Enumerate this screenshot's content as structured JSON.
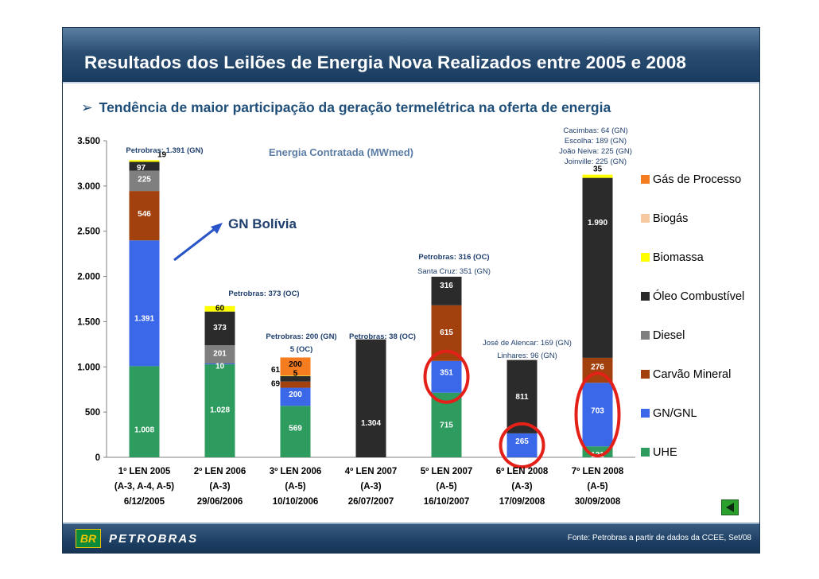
{
  "slide": {
    "title": "Resultados dos Leilões de Energia Nova Realizados entre 2005 e 2008",
    "subtitle": "Tendência de maior participação da geração termelétrica na oferta de energia",
    "footer_source": "Fonte: Petrobras a partir de dados da CCEE, Set/08",
    "logo_text": "PETROBRAS",
    "logo_mark": "BR",
    "back_icon": "triangle-left-icon"
  },
  "colors": {
    "UHE": "#2e9b5f",
    "GN/GNL": "#3b68e8",
    "Carvão Mineral": "#a3410e",
    "Diesel": "#7f7f7f",
    "Óleo Combustível": "#2b2b2b",
    "Biomassa": "#ffff00",
    "Biogás": "#f7c9a0",
    "Gás de Processo": "#f57c1f",
    "highlight_ring": "#e32119",
    "annotation_text": "#1f3f6e"
  },
  "chart_data": {
    "type": "stacked-bar",
    "title": "Energia Contratada (MWmed)",
    "ylim": [
      0,
      3500
    ],
    "yticks": [
      0,
      500,
      1000,
      1500,
      2000,
      2500,
      3000,
      3500
    ],
    "ytick_labels": [
      "0",
      "500",
      "1.000",
      "1.500",
      "2.000",
      "2.500",
      "3.000",
      "3.500"
    ],
    "categories": [
      {
        "name": "1º LEN 2005",
        "type": "(A-3, A-4, A-5)",
        "date": "6/12/2005"
      },
      {
        "name": "2º LEN 2006",
        "type": "(A-3)",
        "date": "29/06/2006"
      },
      {
        "name": "3º LEN 2006",
        "type": "(A-5)",
        "date": "10/10/2006"
      },
      {
        "name": "4º LEN 2007",
        "type": "(A-3)",
        "date": "26/07/2007"
      },
      {
        "name": "5º LEN 2007",
        "type": "(A-5)",
        "date": "16/10/2007"
      },
      {
        "name": "6º LEN 2008",
        "type": "(A-3)",
        "date": "17/09/2008"
      },
      {
        "name": "7º LEN 2008",
        "type": "(A-5)",
        "date": "30/09/2008"
      }
    ],
    "legend": [
      "Gás de Processo",
      "Biogás",
      "Biomassa",
      "Óleo Combustível",
      "Diesel",
      "Carvão Mineral",
      "GN/GNL",
      "UHE"
    ],
    "bars": [
      {
        "segments": [
          {
            "series": "UHE",
            "value": 1008,
            "label": "1.008"
          },
          {
            "series": "GN/GNL",
            "value": 1391,
            "label": "1.391"
          },
          {
            "series": "Carvão Mineral",
            "value": 546,
            "label": "546"
          },
          {
            "series": "Diesel",
            "value": 225,
            "label": "225"
          },
          {
            "series": "Óleo Combustível",
            "value": 97,
            "label": "97"
          },
          {
            "series": "Biomassa",
            "value": 19,
            "label": "19"
          }
        ]
      },
      {
        "segments": [
          {
            "series": "UHE",
            "value": 1028,
            "label": "1.028"
          },
          {
            "series": "GN/GNL",
            "value": 10,
            "label": "10"
          },
          {
            "series": "Diesel",
            "value": 201,
            "label": "201"
          },
          {
            "series": "Óleo Combustível",
            "value": 373,
            "label": "373"
          },
          {
            "series": "Biomassa",
            "value": 60,
            "label": "60"
          }
        ]
      },
      {
        "segments": [
          {
            "series": "UHE",
            "value": 569,
            "label": "569"
          },
          {
            "series": "GN/GNL",
            "value": 200,
            "label": "200"
          },
          {
            "series": "Carvão Mineral",
            "value": 69,
            "label": "69"
          },
          {
            "series": "Óleo Combustível",
            "value": 61,
            "label": "61"
          },
          {
            "series": "Biomassa",
            "value": 5,
            "label": "5"
          },
          {
            "series": "Gás de Processo",
            "value": 200,
            "label": "200"
          }
        ]
      },
      {
        "segments": [
          {
            "series": "Óleo Combustível",
            "value": 1304,
            "label": "1.304"
          }
        ]
      },
      {
        "segments": [
          {
            "series": "UHE",
            "value": 715,
            "label": "715"
          },
          {
            "series": "GN/GNL",
            "value": 351,
            "label": "351"
          },
          {
            "series": "Carvão Mineral",
            "value": 615,
            "label": "615"
          },
          {
            "series": "Óleo Combustível",
            "value": 316,
            "label": "316"
          }
        ]
      },
      {
        "segments": [
          {
            "series": "GN/GNL",
            "value": 265,
            "label": "265"
          },
          {
            "series": "Óleo Combustível",
            "value": 811,
            "label": "811"
          }
        ]
      },
      {
        "segments": [
          {
            "series": "UHE",
            "value": 121,
            "label": "121"
          },
          {
            "series": "GN/GNL",
            "value": 703,
            "label": "703"
          },
          {
            "series": "Carvão Mineral",
            "value": 276,
            "label": "276"
          },
          {
            "series": "Óleo Combustível",
            "value": 1990,
            "label": "1.990"
          },
          {
            "series": "Biomassa",
            "value": 35,
            "label": "35"
          }
        ]
      }
    ],
    "highlighted": [
      {
        "bar": 4,
        "series": "GN/GNL"
      },
      {
        "bar": 5,
        "series": "GN/GNL"
      },
      {
        "bar": 6,
        "series": "GN/GNL"
      }
    ],
    "annotations": {
      "gn_bolivia": "GN Bolívia",
      "bar1_note": "Petrobras: 1.391 (GN)",
      "bar2_note": "Petrobras: 373 (OC)",
      "bar3_notes": [
        "Petrobras: 200 (GN)",
        "5 (OC)"
      ],
      "bar4_note": "Petrobras: 38 (OC)",
      "bar5_notes": [
        "Petrobras: 316 (OC)",
        "Santa Cruz: 351 (GN)"
      ],
      "bar6_notes": [
        "José de Alencar: 169 (GN)",
        "Linhares: 96 (GN)"
      ],
      "bar7_notes": [
        "Cacimbas: 64 (GN)",
        "Escolha: 189 (GN)",
        "João Neiva: 225 (GN)",
        "Joinville: 225 (GN)"
      ]
    }
  }
}
